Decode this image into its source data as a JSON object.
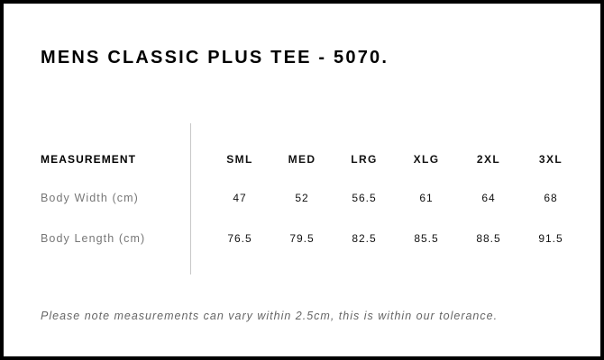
{
  "title": "MENS CLASSIC PLUS TEE - 5070.",
  "table": {
    "header_label": "MEASUREMENT",
    "sizes": [
      "SML",
      "MED",
      "LRG",
      "XLG",
      "2XL",
      "3XL"
    ],
    "rows": [
      {
        "label": "Body Width (cm)",
        "values": [
          "47",
          "52",
          "56.5",
          "61",
          "64",
          "68"
        ]
      },
      {
        "label": "Body Length (cm)",
        "values": [
          "76.5",
          "79.5",
          "82.5",
          "85.5",
          "88.5",
          "91.5"
        ]
      }
    ]
  },
  "note": "Please note measurements can vary within 2.5cm, this is within our tolerance."
}
